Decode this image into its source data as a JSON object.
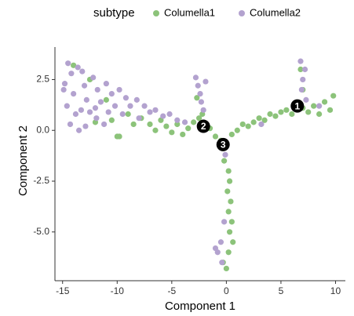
{
  "chart_data": {
    "type": "scatter",
    "legend_title": "subtype",
    "x_label": "Component 1",
    "y_label": "Component 2",
    "xlim": [
      -15.7,
      10.9
    ],
    "xticks": [
      -15,
      -10,
      -5,
      0,
      5,
      10
    ],
    "ylim": [
      -7.4,
      4.1
    ],
    "yticks": [
      {
        "value": 2.5,
        "label": "2.5"
      },
      {
        "value": 0,
        "label": "0.0"
      },
      {
        "value": -2.5,
        "label": "-2.5"
      },
      {
        "value": -5,
        "label": "-5.0"
      }
    ],
    "legend_position": "top",
    "series": [
      {
        "name": "Columella1",
        "color": "#8cc37a",
        "x": [
          -14.0,
          -12.5,
          -11.0,
          -10.5,
          -9.8,
          -9.0,
          -8.5,
          -7.8,
          -7.0,
          -6.5,
          -6.0,
          -5.5,
          -5.0,
          -4.5,
          -4.0,
          -3.5,
          -3.0,
          -2.5,
          -2.0,
          -1.5,
          -1.0,
          -0.5,
          0.5,
          1.0,
          1.5,
          2.0,
          2.5,
          3.0,
          3.5,
          4.0,
          4.5,
          5.0,
          5.5,
          6.0,
          6.5,
          7.0,
          7.5,
          8.0,
          8.5,
          9.0,
          9.5,
          9.8,
          7.0,
          6.8,
          -0.2,
          0.2,
          0.3,
          0.1,
          0.4,
          0.2,
          0.5,
          0.3,
          0.6,
          0.2,
          -0.3,
          0.0,
          -10.0,
          -2.7,
          -2.2,
          -12.0
        ],
        "y": [
          3.2,
          2.5,
          1.5,
          0.5,
          -0.3,
          0.8,
          0.3,
          0.6,
          0.3,
          0.0,
          0.5,
          0.2,
          -0.1,
          0.3,
          -0.2,
          0.1,
          0.4,
          0.6,
          0.3,
          0.1,
          -0.3,
          -0.5,
          -0.2,
          0.0,
          0.3,
          0.2,
          0.4,
          0.6,
          0.5,
          0.8,
          0.7,
          0.9,
          1.0,
          0.8,
          1.3,
          1.1,
          0.9,
          1.2,
          0.8,
          1.4,
          1.0,
          1.7,
          2.0,
          3.0,
          -1.5,
          -2.0,
          -2.5,
          -3.0,
          -3.5,
          -4.0,
          -4.5,
          -5.0,
          -5.5,
          -6.0,
          -6.5,
          -6.8,
          -0.3,
          1.6,
          0.8,
          0.4
        ]
      },
      {
        "name": "Columella2",
        "color": "#b3a2cf",
        "x": [
          -14.5,
          -14.2,
          -14.8,
          -14.0,
          -14.6,
          -13.8,
          -14.3,
          -13.5,
          -13.2,
          -13.0,
          -12.8,
          -12.5,
          -12.9,
          -12.2,
          -11.8,
          -11.5,
          -11.9,
          -11.0,
          -10.5,
          -10.2,
          -9.8,
          -9.2,
          -8.8,
          -8.2,
          -7.5,
          -7.0,
          -6.5,
          -5.8,
          -5.2,
          -4.5,
          -3.8,
          -14.9,
          -13.6,
          -12.0,
          -10.8,
          -9.5,
          -2.8,
          -2.6,
          -2.4,
          -2.3,
          -2.1,
          -1.9,
          6.8,
          7.2,
          7.0,
          6.9,
          7.3,
          8.5,
          -0.5,
          -0.8,
          -0.4,
          -1.0,
          -0.2,
          -0.1,
          3.2,
          -13.3,
          -11.2,
          -8.0
        ],
        "y": [
          3.3,
          2.8,
          2.3,
          1.8,
          1.2,
          0.8,
          0.3,
          0.0,
          2.9,
          2.2,
          1.5,
          0.9,
          0.2,
          2.6,
          2.0,
          1.4,
          0.6,
          2.3,
          1.8,
          1.2,
          2.0,
          1.6,
          1.2,
          1.5,
          1.2,
          0.9,
          1.0,
          0.7,
          0.8,
          0.5,
          0.4,
          2.0,
          3.1,
          1.1,
          0.9,
          0.8,
          2.6,
          2.2,
          1.8,
          1.4,
          1.0,
          2.4,
          3.4,
          3.0,
          2.5,
          2.0,
          1.5,
          1.2,
          -5.5,
          -6.0,
          -6.5,
          -5.8,
          -4.5,
          -1.2,
          0.3,
          1.0,
          0.3,
          0.6
        ]
      }
    ],
    "branch_points": [
      {
        "label": "1",
        "x": 6.5,
        "y": 1.2
      },
      {
        "label": "2",
        "x": -2.1,
        "y": 0.2
      },
      {
        "label": "3",
        "x": -0.3,
        "y": -0.7
      }
    ]
  }
}
